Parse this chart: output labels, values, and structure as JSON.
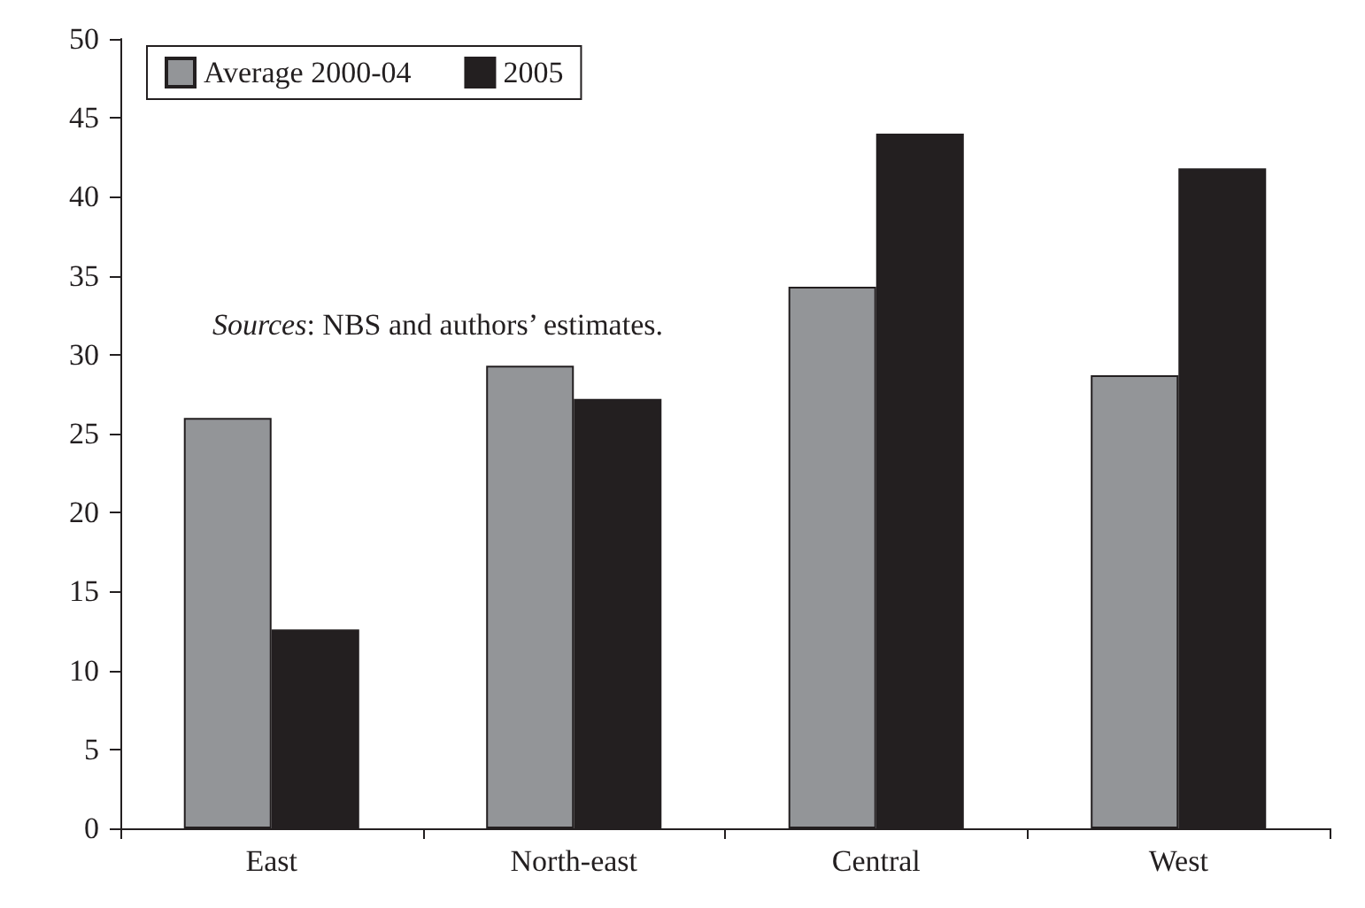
{
  "chart_data": {
    "type": "bar",
    "categories": [
      "East",
      "North-east",
      "Central",
      "West"
    ],
    "series": [
      {
        "name": "Average 2000-04",
        "color": "#939598",
        "values": [
          26.0,
          29.3,
          34.3,
          28.7
        ]
      },
      {
        "name": "2005",
        "color": "#231f20",
        "values": [
          12.6,
          27.2,
          44.0,
          41.8
        ]
      }
    ],
    "ylim": [
      0,
      50
    ],
    "yticks": [
      0,
      5,
      10,
      15,
      20,
      25,
      30,
      35,
      40,
      45,
      50
    ],
    "grid": false,
    "legend": "top left",
    "annotations": [
      {
        "text": "Sources: NBS and authors’ estimates."
      }
    ]
  }
}
